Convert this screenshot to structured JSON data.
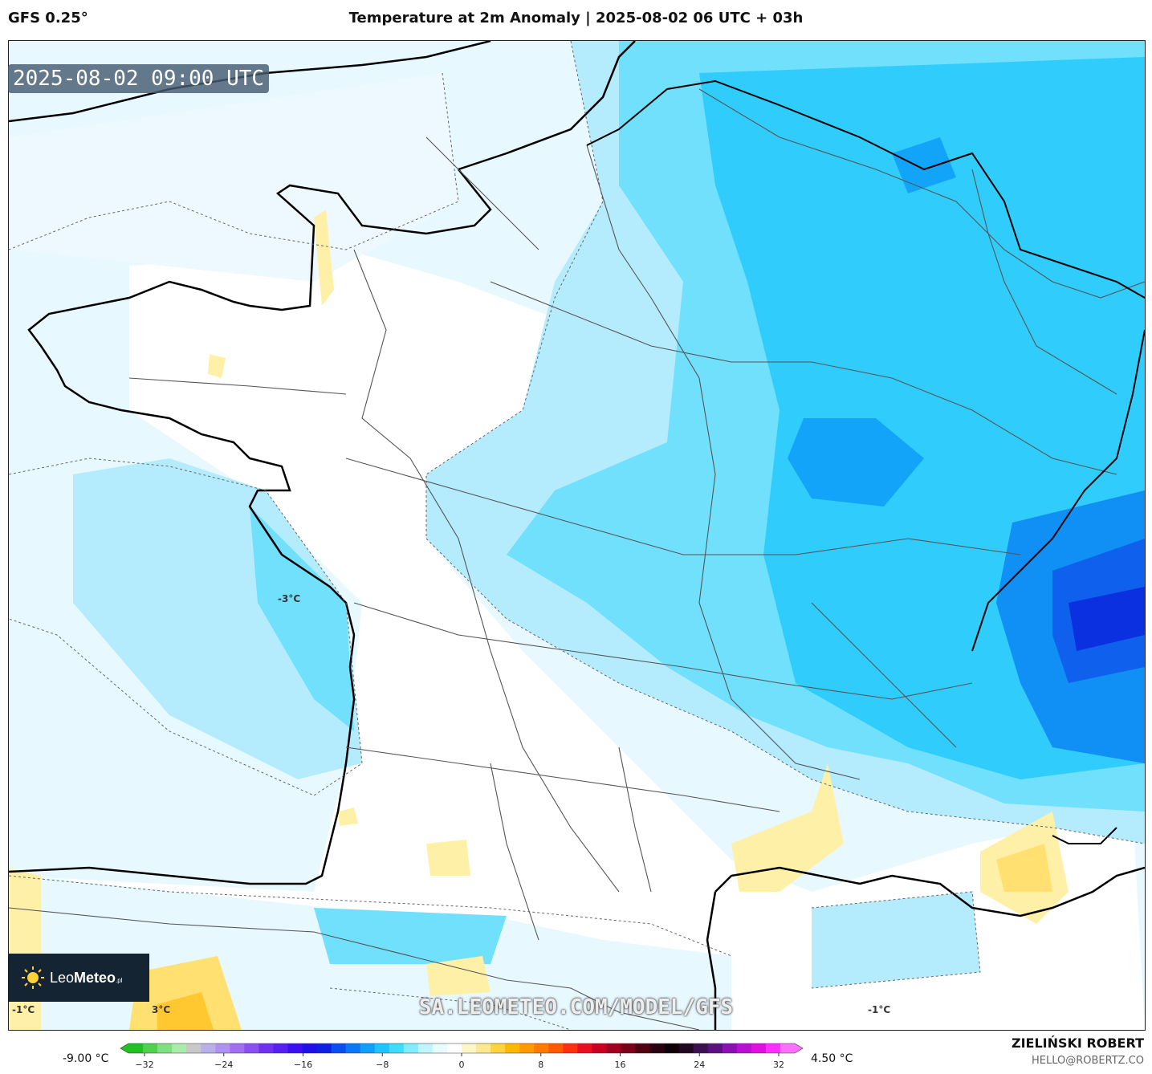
{
  "header": {
    "model": "GFS 0.25°",
    "title": "Temperature at 2m Anomaly | 2025-08-02 06 UTC + 03h"
  },
  "map": {
    "timestamp": "2025-08-02 09:00 UTC",
    "contour_labels": [
      "-3°C",
      "-1°C",
      "3°C",
      "-1°C"
    ]
  },
  "branding": {
    "logo_light": "Leo",
    "logo_bold": "Meteo",
    "logo_suffix": ".pl",
    "watermark": "SA.LEOMETEO.COM/MODEL/GFS",
    "author": "ZIELIŃSKI ROBERT",
    "email": "HELLO@ROBERTZ.CO"
  },
  "colorbar": {
    "min_label": "-9.00 °C",
    "max_label": "4.50 °C",
    "ticks": [
      "−32",
      "−24",
      "−16",
      "−8",
      "0",
      "8",
      "16",
      "24",
      "32"
    ],
    "colors": [
      "#22c022",
      "#4fd14f",
      "#7fe07f",
      "#a8eca8",
      "#c8c8c8",
      "#b8b0e8",
      "#b090f0",
      "#a070f0",
      "#8a50f0",
      "#6f30f0",
      "#5520f0",
      "#3b10f0",
      "#2010e8",
      "#1020e0",
      "#0a4ef0",
      "#0a78f5",
      "#10a0fa",
      "#20c4fc",
      "#40dcfd",
      "#80ecfe",
      "#c0f4ff",
      "#e8fbff",
      "#ffffff",
      "#fff6c8",
      "#ffe890",
      "#ffd240",
      "#ffb800",
      "#ff9a00",
      "#ff7a00",
      "#ff5a00",
      "#ff3010",
      "#e81020",
      "#c80020",
      "#a00020",
      "#780018",
      "#500010",
      "#280010",
      "#100008",
      "#200820",
      "#3a1050",
      "#5a1080",
      "#8a10b0",
      "#b810d0",
      "#e010e0",
      "#ff30ff",
      "#ff70ff"
    ]
  }
}
